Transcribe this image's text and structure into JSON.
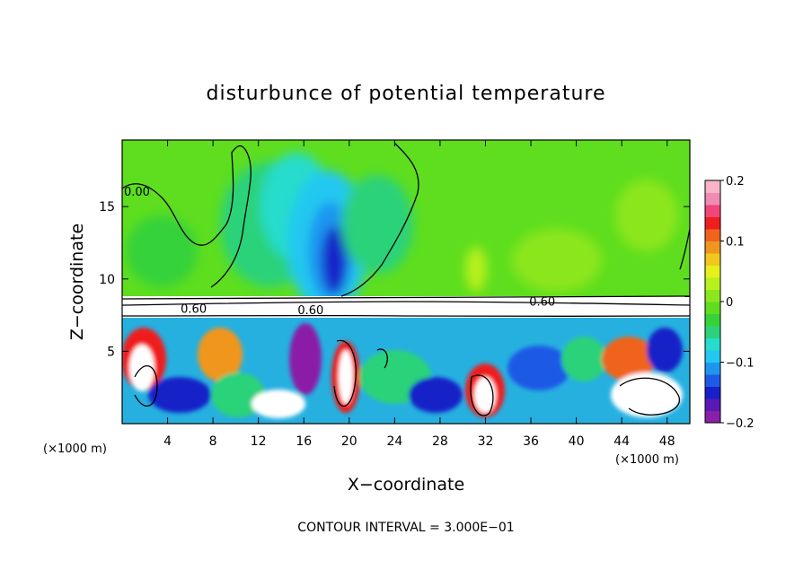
{
  "chart_data": {
    "type": "heatmap",
    "title": "disturbunce of potential temperature",
    "xlabel": "X−coordinate",
    "ylabel": "Z−coordinate",
    "x_unit": "(×1000 m)",
    "z_unit": "(×1000 m)",
    "x_ticks": [
      4,
      8,
      12,
      16,
      20,
      24,
      28,
      32,
      36,
      40,
      44,
      48
    ],
    "y_ticks": [
      5,
      10,
      15
    ],
    "xlim": [
      0,
      50
    ],
    "ylim": [
      0,
      19.6
    ],
    "colorbar": {
      "range": [
        -0.2,
        0.2
      ],
      "ticks": [
        {
          "value": 0.2,
          "label": "0.2"
        },
        {
          "value": 0.1,
          "label": "0.1"
        },
        {
          "value": 0,
          "label": "0"
        },
        {
          "value": -0.1,
          "label": "−0.1"
        },
        {
          "value": -0.2,
          "label": "−0.2"
        }
      ],
      "colors": [
        "#8a1fa8",
        "#5a18b4",
        "#1820c8",
        "#1e5ae6",
        "#1e96f0",
        "#22c8f0",
        "#26dccc",
        "#2cd27a",
        "#36d23a",
        "#5ede1e",
        "#8ce61e",
        "#b8f01e",
        "#e6f01a",
        "#f0c81e",
        "#f0961e",
        "#f0641e",
        "#f01e1e",
        "#f04678",
        "#f08cb4",
        "#f8b4c8"
      ]
    },
    "contour_labels": [
      {
        "text": "0.00",
        "x": 1.3,
        "z": 16.0
      },
      {
        "text": "0.60",
        "x": 37.0,
        "z": 8.4
      },
      {
        "text": "0.60",
        "x": 6.3,
        "z": 7.9
      },
      {
        "text": "0.60",
        "x": 16.6,
        "z": 7.8
      }
    ],
    "contour_interval_label": "CONTOUR INTERVAL =  3.000E−01"
  }
}
